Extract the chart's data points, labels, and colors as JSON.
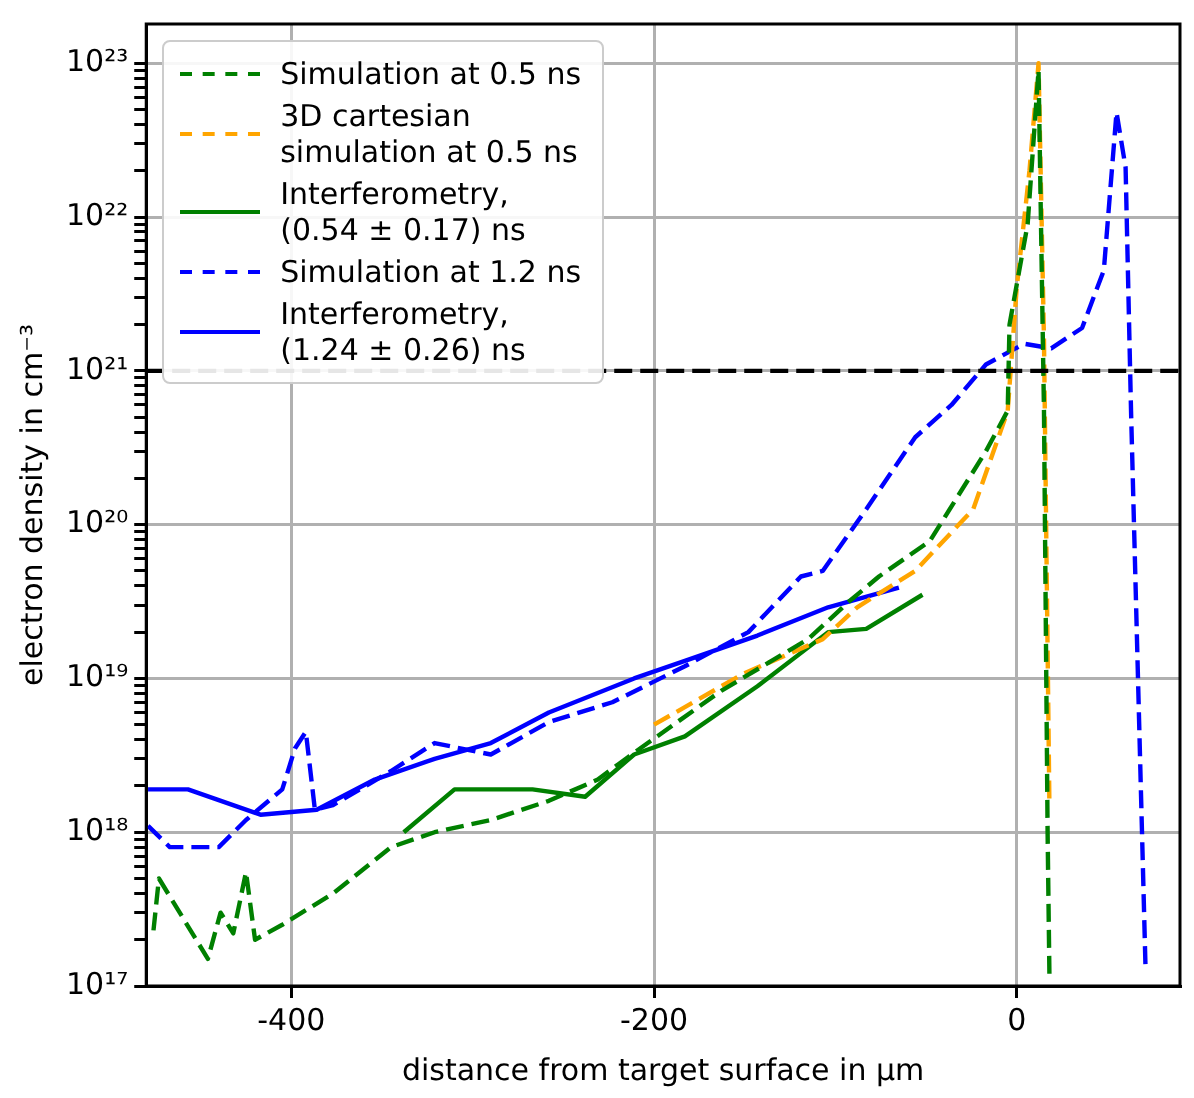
{
  "chart_data": {
    "type": "line",
    "xlabel": "distance from target surface in µm",
    "ylabel": "electron density in cm⁻³",
    "xlim": [
      -480,
      90
    ],
    "xticks": [
      -400,
      -200,
      0
    ],
    "ylim": [
      1e+17,
      1.8e+23
    ],
    "yticks": [
      {
        "value": 1e+17,
        "label": "10¹⁷"
      },
      {
        "value": 2e+17,
        "label": null
      },
      {
        "value": 3e+17,
        "label": null
      },
      {
        "value": 4e+17,
        "label": null
      },
      {
        "value": 5e+17,
        "label": null
      },
      {
        "value": 6e+17,
        "label": null
      },
      {
        "value": 7e+17,
        "label": null
      },
      {
        "value": 8e+17,
        "label": null
      },
      {
        "value": 9e+17,
        "label": null
      },
      {
        "value": 1e+18,
        "label": "10¹⁸"
      },
      {
        "value": 2e+18,
        "label": null
      },
      {
        "value": 3e+18,
        "label": null
      },
      {
        "value": 4e+18,
        "label": null
      },
      {
        "value": 5e+18,
        "label": null
      },
      {
        "value": 6e+18,
        "label": null
      },
      {
        "value": 7e+18,
        "label": null
      },
      {
        "value": 8e+18,
        "label": null
      },
      {
        "value": 9e+18,
        "label": null
      },
      {
        "value": 1e+19,
        "label": "10¹⁹"
      },
      {
        "value": 2e+19,
        "label": null
      },
      {
        "value": 3e+19,
        "label": null
      },
      {
        "value": 4e+19,
        "label": null
      },
      {
        "value": 5e+19,
        "label": null
      },
      {
        "value": 6e+19,
        "label": null
      },
      {
        "value": 7e+19,
        "label": null
      },
      {
        "value": 8e+19,
        "label": null
      },
      {
        "value": 9e+19,
        "label": null
      },
      {
        "value": 1e+20,
        "label": "10²⁰"
      },
      {
        "value": 2e+20,
        "label": null
      },
      {
        "value": 3e+20,
        "label": null
      },
      {
        "value": 4e+20,
        "label": null
      },
      {
        "value": 5e+20,
        "label": null
      },
      {
        "value": 6e+20,
        "label": null
      },
      {
        "value": 7e+20,
        "label": null
      },
      {
        "value": 8e+20,
        "label": null
      },
      {
        "value": 9e+20,
        "label": null
      },
      {
        "value": 1e+21,
        "label": "10²¹"
      },
      {
        "value": 2e+21,
        "label": null
      },
      {
        "value": 3e+21,
        "label": null
      },
      {
        "value": 4e+21,
        "label": null
      },
      {
        "value": 5e+21,
        "label": null
      },
      {
        "value": 6e+21,
        "label": null
      },
      {
        "value": 7e+21,
        "label": null
      },
      {
        "value": 8e+21,
        "label": null
      },
      {
        "value": 9e+21,
        "label": null
      },
      {
        "value": 1e+22,
        "label": "10²²"
      },
      {
        "value": 2e+22,
        "label": null
      },
      {
        "value": 3e+22,
        "label": null
      },
      {
        "value": 4e+22,
        "label": null
      },
      {
        "value": 5e+22,
        "label": null
      },
      {
        "value": 6e+22,
        "label": null
      },
      {
        "value": 7e+22,
        "label": null
      },
      {
        "value": 8e+22,
        "label": null
      },
      {
        "value": 9e+22,
        "label": null
      },
      {
        "value": 1e+23,
        "label": "10²³"
      }
    ],
    "log": "y",
    "grid": true,
    "legend": "top left",
    "marker": "none",
    "ref_lines": [
      {
        "axis": "y",
        "value": 1e+21,
        "color": "#000000",
        "line_style": "dashed"
      }
    ],
    "series": [
      {
        "name": "Simulation at 0.5 ns",
        "color": "#008000",
        "line_style": "dashed",
        "x": [
          -476,
          -473,
          -446,
          -439,
          -432,
          -425,
          -420,
          -405,
          -377,
          -345,
          -321,
          -290,
          -258,
          -231,
          -214,
          -163,
          -115,
          -92,
          -76,
          -48,
          -17,
          -5,
          -4,
          6,
          12,
          15,
          17,
          18
        ],
        "values": [
          2.3e+17,
          5e+17,
          1.5e+17,
          3e+17,
          2.2e+17,
          5.5e+17,
          2e+17,
          2.5e+17,
          4e+17,
          8e+17,
          1e+18,
          1.2e+18,
          1.6e+18,
          2.2e+18,
          3.1e+18,
          8.3e+18,
          1.8e+19,
          3.2e+19,
          4.6e+19,
          7.8e+19,
          3e+20,
          5.5e+20,
          2e+21,
          9e+21,
          9e+22,
          5.5e+20,
          1e+18,
          1.2e+17
        ]
      },
      {
        "name": "3D cartesian simulation at 0.5 ns",
        "color": "#ffa500",
        "line_style": "dashed",
        "x": [
          -200,
          -151,
          -107,
          -88,
          -56,
          -24,
          -5,
          0,
          7,
          12,
          15,
          18
        ],
        "values": [
          5e+18,
          1.07e+19,
          1.8e+19,
          2.9e+19,
          5e+19,
          1.26e+20,
          5.5e+20,
          3.5e+21,
          2e+22,
          1e+23,
          1.6e+21,
          1.5e+18
        ]
      },
      {
        "name": "Interferometry, (0.54 ± 0.17) ns",
        "color": "#008000",
        "line_style": "solid",
        "x": [
          -338,
          -310,
          -267,
          -238,
          -211,
          -183,
          -143,
          -104,
          -83,
          -52
        ],
        "values": [
          1e+18,
          1.9e+18,
          1.9e+18,
          1.7e+18,
          3.2e+18,
          4.2e+18,
          8.9e+18,
          2e+19,
          2.1e+19,
          3.5e+19
        ]
      },
      {
        "name": "Simulation at 1.2 ns",
        "color": "#0000ff",
        "line_style": "dashed",
        "x": [
          -479,
          -467,
          -440,
          -425,
          -405,
          -398,
          -392,
          -387,
          -377,
          -345,
          -321,
          -290,
          -258,
          -223,
          -183,
          -148,
          -119,
          -107,
          -83,
          -56,
          -36,
          -17,
          4,
          19,
          36,
          48,
          55,
          60,
          63,
          71
        ],
        "values": [
          1.1e+18,
          8e+17,
          8e+17,
          1.2e+18,
          1.9e+18,
          3.5e+18,
          4.5e+18,
          1.4e+18,
          1.5e+18,
          2.5e+18,
          3.8e+18,
          3.2e+18,
          5.2e+18,
          7e+18,
          1.2e+19,
          2e+19,
          4.6e+19,
          5e+19,
          1.26e+20,
          3.7e+20,
          6e+20,
          1.1e+21,
          1.5e+21,
          1.4e+21,
          1.9e+21,
          4.5e+21,
          4.8e+22,
          2.1e+22,
          5.5e+20,
          1.3e+17
        ]
      },
      {
        "name": "Interferometry, (1.24 ± 0.26) ns",
        "color": "#0000ff",
        "line_style": "solid",
        "x": [
          -479,
          -457,
          -417,
          -386,
          -354,
          -321,
          -290,
          -258,
          -211,
          -183,
          -143,
          -104,
          -65
        ],
        "values": [
          1.9e+18,
          1.9e+18,
          1.3e+18,
          1.4e+18,
          2.2e+18,
          3e+18,
          3.8e+18,
          6e+18,
          1e+19,
          1.3e+19,
          1.9e+19,
          2.9e+19,
          3.9e+19
        ]
      }
    ]
  }
}
